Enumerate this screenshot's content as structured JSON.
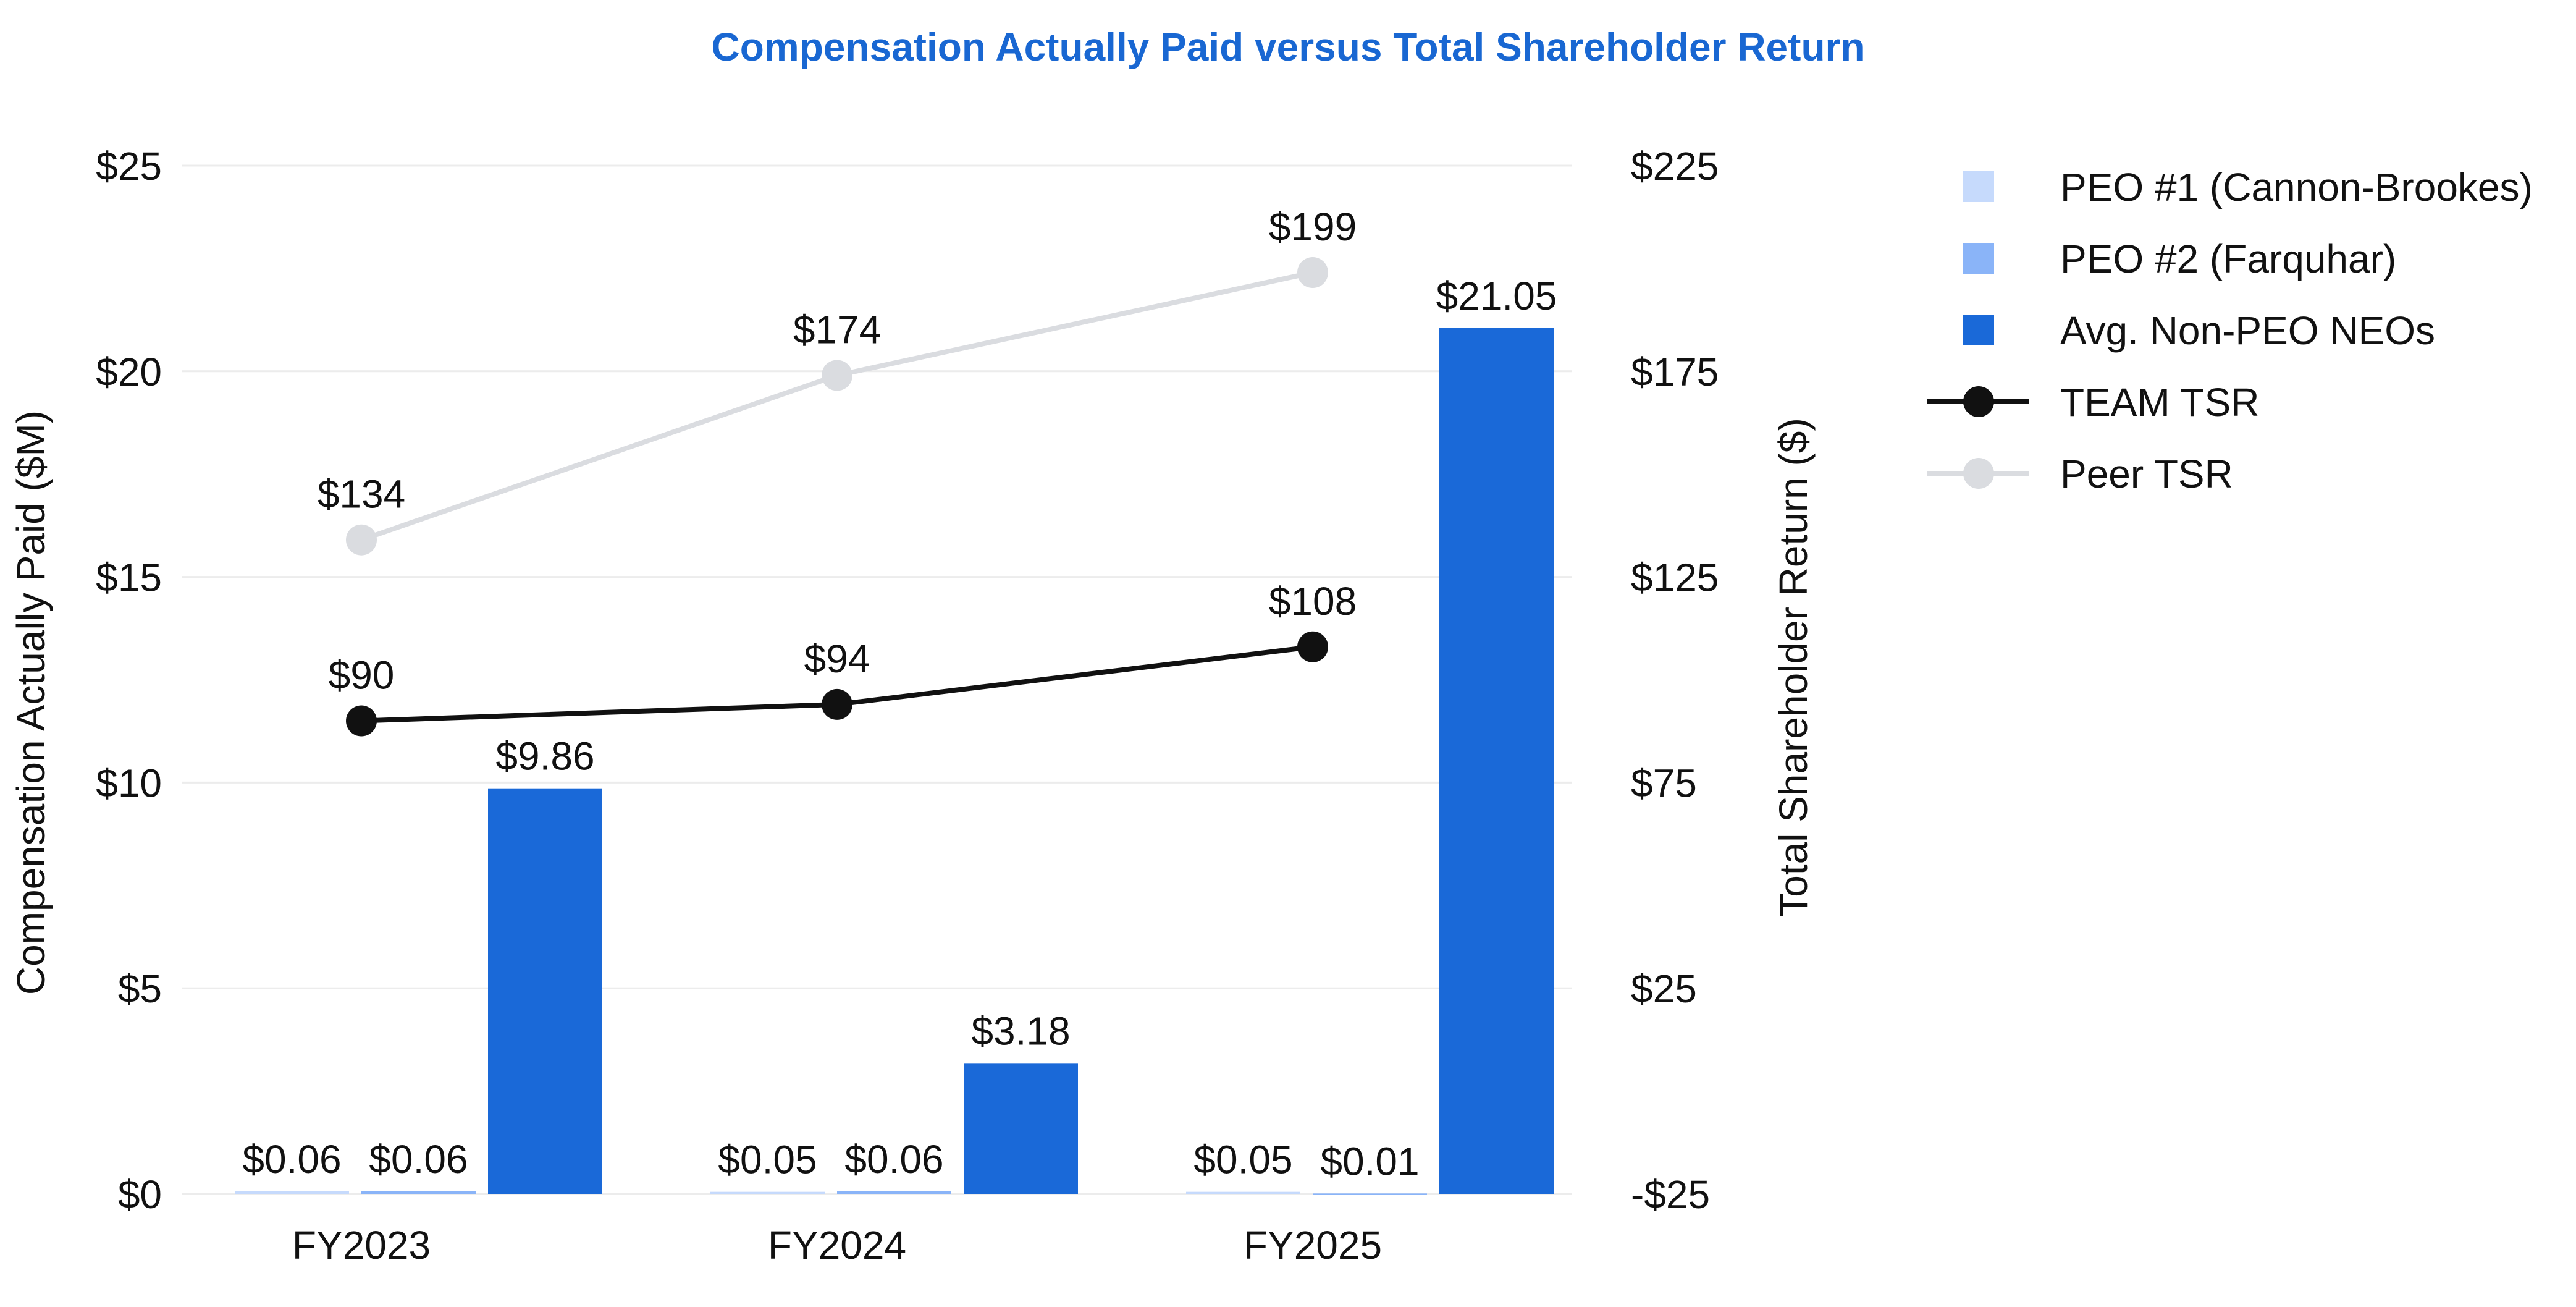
{
  "colors": {
    "title": "#1967d2",
    "peo1": "#c6dafc",
    "peo2": "#8ab4f8",
    "non_peo": "#1a69d8",
    "team_tsr": "#111111",
    "peer_tsr": "#dadce0",
    "grid": "#ececec"
  },
  "chart_data": {
    "type": "bar",
    "title": "Compensation Actually Paid versus Total Shareholder Return",
    "categories": [
      "FY2023",
      "FY2024",
      "FY2025"
    ],
    "ylabel": "Compensation Actually Paid ($M)",
    "y2label": "Total Shareholder Return ($)",
    "ylim": [
      0,
      25
    ],
    "y2lim": [
      -25,
      225
    ],
    "yticks": [
      "$0",
      "$5",
      "$10",
      "$15",
      "$20",
      "$25"
    ],
    "y2ticks": [
      "-$25",
      "$25",
      "$75",
      "$125",
      "$175",
      "$225"
    ],
    "series": [
      {
        "name": "PEO #1 (Cannon-Brookes)",
        "type": "bar",
        "values": [
          0.06,
          0.05,
          0.05
        ],
        "labels": [
          "$0.06",
          "$0.05",
          "$0.05"
        ]
      },
      {
        "name": "PEO #2 (Farquhar)",
        "type": "bar",
        "values": [
          0.06,
          0.06,
          0.01
        ],
        "labels": [
          "$0.06",
          "$0.06",
          "$0.01"
        ]
      },
      {
        "name": "Avg. Non-PEO NEOs",
        "type": "bar",
        "values": [
          9.86,
          3.18,
          21.05
        ],
        "labels": [
          "$9.86",
          "$3.18",
          "$21.05"
        ]
      },
      {
        "name": "TEAM TSR",
        "type": "line",
        "axis": "right",
        "values": [
          90,
          94,
          108
        ],
        "labels": [
          "$90",
          "$94",
          "$108"
        ]
      },
      {
        "name": "Peer TSR",
        "type": "line",
        "axis": "right",
        "values": [
          134,
          174,
          199
        ],
        "labels": [
          "$134",
          "$174",
          "$199"
        ]
      }
    ],
    "legend_position": "top-right",
    "grid": true
  }
}
